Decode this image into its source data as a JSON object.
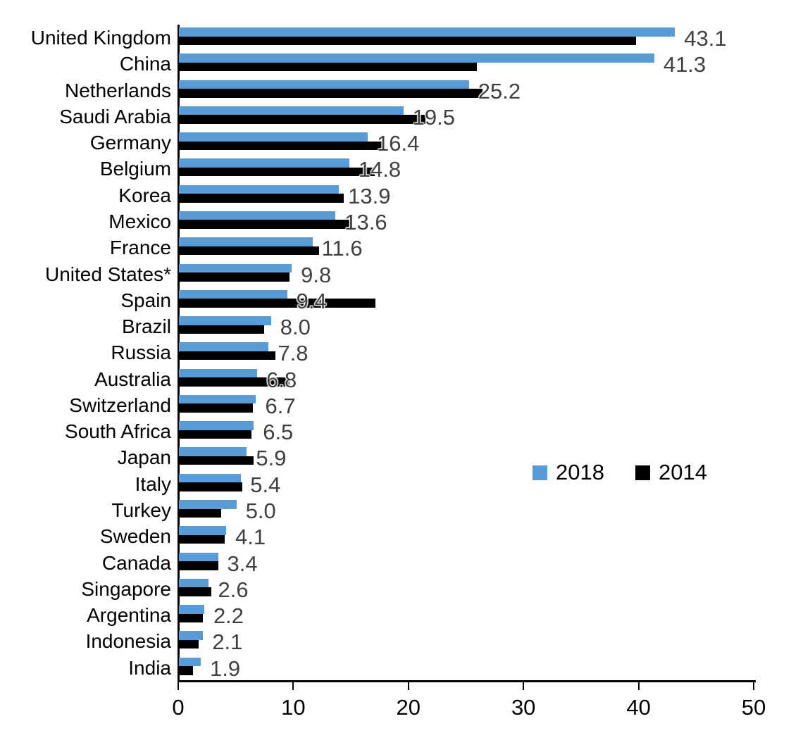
{
  "chart_data": {
    "type": "bar",
    "orientation": "horizontal",
    "title": "",
    "xlabel": "",
    "ylabel": "",
    "xlim": [
      0,
      50
    ],
    "x_ticks": [
      "0",
      "10",
      "20",
      "30",
      "40",
      "50"
    ],
    "grid": false,
    "categories": [
      "United Kingdom",
      "China",
      "Netherlands",
      "Saudi Arabia",
      "Germany",
      "Belgium",
      "Korea",
      "Mexico",
      "France",
      "United States*",
      "Spain",
      "Brazil",
      "Russia",
      "Australia",
      "Switzerland",
      "South Africa",
      "Japan",
      "Italy",
      "Turkey",
      "Sweden",
      "Canada",
      "Singapore",
      "Argentina",
      "Indonesia",
      "India"
    ],
    "series": [
      {
        "name": "2018",
        "color": "#5B9BD5",
        "values": [
          43.1,
          41.3,
          25.2,
          19.5,
          16.4,
          14.8,
          13.9,
          13.6,
          11.6,
          9.8,
          9.4,
          8.0,
          7.8,
          6.8,
          6.7,
          6.5,
          5.9,
          5.4,
          5.0,
          4.1,
          3.4,
          2.6,
          2.2,
          2.1,
          1.9
        ]
      },
      {
        "name": "2014",
        "color": "#000000",
        "values": [
          39.7,
          25.9,
          26.4,
          21.4,
          17.9,
          17.0,
          14.3,
          14.9,
          12.2,
          9.6,
          17.1,
          7.4,
          8.4,
          9.6,
          6.4,
          6.3,
          6.5,
          5.5,
          3.7,
          4.0,
          3.4,
          2.8,
          2.1,
          1.7,
          1.2
        ]
      }
    ],
    "data_labels": {
      "labeled_series": "2018",
      "labels": [
        "43.1",
        "41.3",
        "25.2",
        "19.5",
        "16.4",
        "14.8",
        "13.9",
        "13.6",
        "11.6",
        "9.8",
        "9.4",
        "8.0",
        "7.8",
        "6.8",
        "6.7",
        "6.5",
        "5.9",
        "5.4",
        "5.0",
        "4.1",
        "3.4",
        "2.6",
        "2.2",
        "2.1",
        "1.9"
      ],
      "label_color": "#404040"
    },
    "legend": {
      "position": "middle-right",
      "entries": [
        {
          "label": "2018",
          "color": "#5B9BD5"
        },
        {
          "label": "2014",
          "color": "#000000"
        }
      ]
    }
  },
  "colors": {
    "background": "#ffffff",
    "axis": "#000000",
    "category_text": "#000000",
    "tick_text": "#000000"
  }
}
